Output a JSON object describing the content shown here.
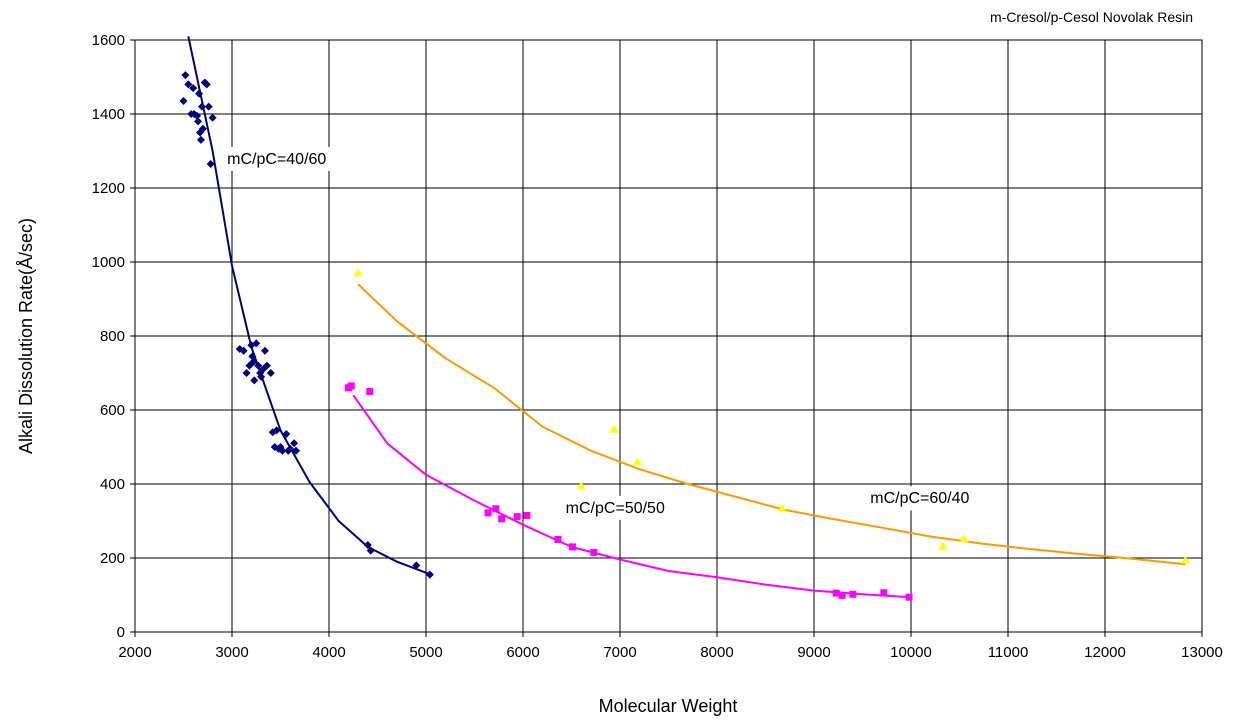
{
  "chart_data": {
    "type": "scatter",
    "title": "m-Cresol/p-Cesol Novolak Resin",
    "xlabel": "Molecular Weight",
    "ylabel": "Alkali Dissolution Rate(Å/sec)",
    "xlim": [
      2000,
      13000
    ],
    "ylim": [
      0,
      1600
    ],
    "x_ticks": [
      2000,
      3000,
      4000,
      5000,
      6000,
      7000,
      8000,
      9000,
      10000,
      11000,
      12000,
      13000
    ],
    "y_ticks": [
      0,
      200,
      400,
      600,
      800,
      1000,
      1200,
      1400,
      1600
    ],
    "grid": true,
    "series": [
      {
        "name": "mC/pC=40/60",
        "color": "#000080",
        "marker": "diamond",
        "points": [
          [
            2500,
            1435
          ],
          [
            2520,
            1505
          ],
          [
            2550,
            1480
          ],
          [
            2580,
            1400
          ],
          [
            2600,
            1470
          ],
          [
            2610,
            1400
          ],
          [
            2640,
            1395
          ],
          [
            2650,
            1380
          ],
          [
            2660,
            1455
          ],
          [
            2670,
            1350
          ],
          [
            2680,
            1330
          ],
          [
            2690,
            1420
          ],
          [
            2700,
            1360
          ],
          [
            2720,
            1485
          ],
          [
            2740,
            1480
          ],
          [
            2760,
            1420
          ],
          [
            2780,
            1265
          ],
          [
            2800,
            1390
          ],
          [
            3080,
            765
          ],
          [
            3120,
            760
          ],
          [
            3150,
            700
          ],
          [
            3180,
            720
          ],
          [
            3200,
            775
          ],
          [
            3210,
            745
          ],
          [
            3220,
            730
          ],
          [
            3230,
            680
          ],
          [
            3250,
            780
          ],
          [
            3270,
            720
          ],
          [
            3290,
            700
          ],
          [
            3300,
            690
          ],
          [
            3320,
            710
          ],
          [
            3340,
            760
          ],
          [
            3360,
            720
          ],
          [
            3400,
            700
          ],
          [
            3420,
            540
          ],
          [
            3440,
            500
          ],
          [
            3460,
            545
          ],
          [
            3480,
            495
          ],
          [
            3500,
            500
          ],
          [
            3520,
            490
          ],
          [
            3560,
            535
          ],
          [
            3580,
            490
          ],
          [
            3600,
            495
          ],
          [
            3640,
            510
          ],
          [
            3660,
            490
          ],
          [
            4400,
            235
          ],
          [
            4430,
            220
          ],
          [
            4900,
            180
          ],
          [
            5040,
            155
          ]
        ],
        "trend": [
          [
            2550,
            1610
          ],
          [
            2800,
            1300
          ],
          [
            3000,
            990
          ],
          [
            3200,
            770
          ],
          [
            3500,
            545
          ],
          [
            3800,
            405
          ],
          [
            4100,
            300
          ],
          [
            4400,
            230
          ],
          [
            4700,
            190
          ],
          [
            5050,
            155
          ]
        ]
      },
      {
        "name": "mC/pC=50/50",
        "color": "#FF00FF",
        "marker": "square",
        "points": [
          [
            4200,
            660
          ],
          [
            4230,
            665
          ],
          [
            4420,
            650
          ],
          [
            5640,
            322
          ],
          [
            5720,
            333
          ],
          [
            5780,
            306
          ],
          [
            5940,
            312
          ],
          [
            6040,
            315
          ],
          [
            6360,
            250
          ],
          [
            6510,
            230
          ],
          [
            6730,
            215
          ],
          [
            9230,
            105
          ],
          [
            9290,
            99
          ],
          [
            9400,
            102
          ],
          [
            9720,
            106
          ],
          [
            9980,
            94
          ]
        ],
        "trend": [
          [
            4250,
            640
          ],
          [
            4600,
            510
          ],
          [
            5000,
            425
          ],
          [
            5500,
            355
          ],
          [
            6000,
            290
          ],
          [
            6500,
            230
          ],
          [
            7000,
            196
          ],
          [
            7500,
            165
          ],
          [
            8000,
            148
          ],
          [
            8500,
            128
          ],
          [
            9000,
            112
          ],
          [
            9500,
            102
          ],
          [
            10000,
            94
          ]
        ]
      },
      {
        "name": "mC/pC=60/40",
        "color": "#FFFF00",
        "trend_color": "#FF9900",
        "marker": "triangle",
        "points": [
          [
            4300,
            970
          ],
          [
            6600,
            395
          ],
          [
            6940,
            548
          ],
          [
            7180,
            460
          ],
          [
            8670,
            335
          ],
          [
            10330,
            232
          ],
          [
            10550,
            252
          ],
          [
            12830,
            194
          ]
        ],
        "trend": [
          [
            4300,
            940
          ],
          [
            4700,
            840
          ],
          [
            5200,
            740
          ],
          [
            5700,
            660
          ],
          [
            6200,
            555
          ],
          [
            6700,
            490
          ],
          [
            7200,
            440
          ],
          [
            7700,
            400
          ],
          [
            8200,
            365
          ],
          [
            8700,
            330
          ],
          [
            9200,
            305
          ],
          [
            9700,
            282
          ],
          [
            10200,
            258
          ],
          [
            10700,
            240
          ],
          [
            11200,
            225
          ],
          [
            11700,
            212
          ],
          [
            12200,
            200
          ],
          [
            12830,
            183
          ]
        ]
      }
    ],
    "annotations": [
      {
        "text": "mC/pC=40/60",
        "x": 2950,
        "y": 1265
      },
      {
        "text": "mC/pC=50/50",
        "x": 6440,
        "y": 322
      },
      {
        "text": "mC/pC=60/40",
        "x": 9580,
        "y": 348
      }
    ]
  }
}
